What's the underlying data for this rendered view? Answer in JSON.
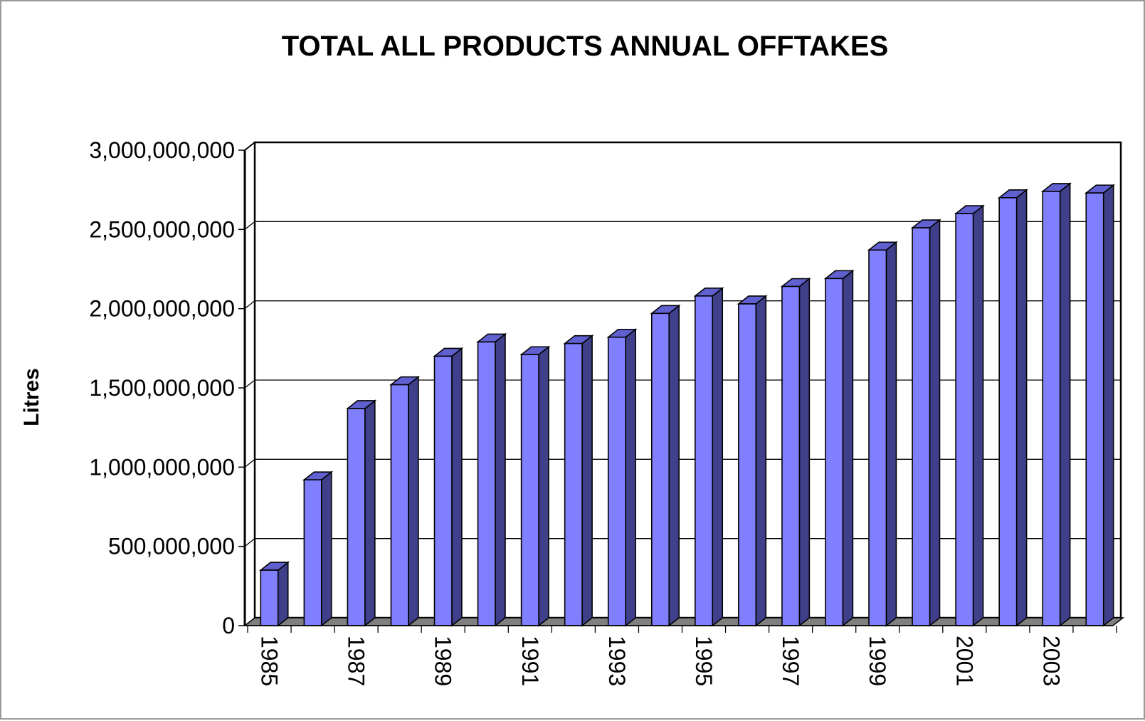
{
  "chart_data": {
    "type": "bar",
    "title": "TOTAL ALL PRODUCTS ANNUAL OFFTAKES",
    "ylabel": "Litres",
    "xlabel": "",
    "categories": [
      "1985",
      "1986",
      "1987",
      "1988",
      "1989",
      "1990",
      "1991",
      "1992",
      "1993",
      "1994",
      "1995",
      "1996",
      "1997",
      "1998",
      "1999",
      "2000",
      "2001",
      "2002",
      "2003",
      "2004"
    ],
    "x_tick_labels": [
      "1985",
      "",
      "1987",
      "",
      "1989",
      "",
      "1991",
      "",
      "1993",
      "",
      "1995",
      "",
      "1997",
      "",
      "1999",
      "",
      "2001",
      "",
      "2003",
      ""
    ],
    "values": [
      350000000,
      920000000,
      1370000000,
      1520000000,
      1700000000,
      1790000000,
      1710000000,
      1780000000,
      1820000000,
      1970000000,
      2080000000,
      2030000000,
      2140000000,
      2190000000,
      2370000000,
      2510000000,
      2600000000,
      2700000000,
      2740000000,
      2730000000
    ],
    "ylim": [
      0,
      3000000000
    ],
    "y_ticks": [
      0,
      500000000,
      1000000000,
      1500000000,
      2000000000,
      2500000000,
      3000000000
    ],
    "y_tick_labels": [
      "0",
      "500,000,000",
      "1,000,000,000",
      "1,500,000,000",
      "2,000,000,000",
      "2,500,000,000",
      "3,000,000,000"
    ],
    "grid": true,
    "legend": "none",
    "style": "3d-column",
    "colors": {
      "bar_front": "#8080ff",
      "bar_side": "#40408a",
      "bar_top": "#6060d0",
      "floor": "#808080",
      "grid": "#000000"
    }
  }
}
